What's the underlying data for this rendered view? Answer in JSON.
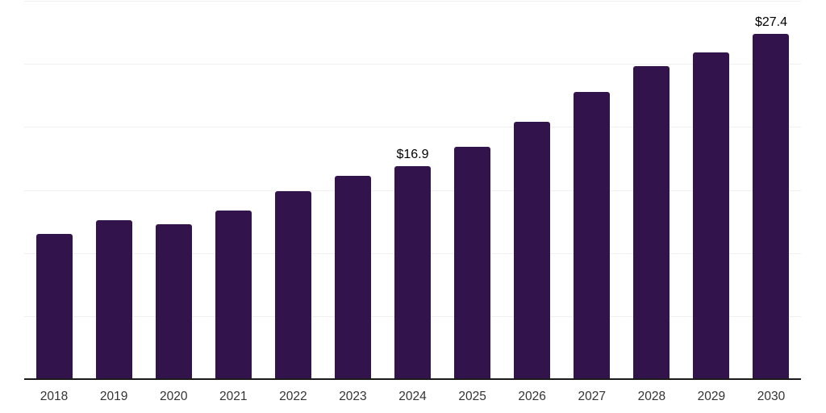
{
  "chart_data": {
    "type": "bar",
    "title": "",
    "xlabel": "",
    "ylabel": "",
    "categories": [
      "2018",
      "2019",
      "2020",
      "2021",
      "2022",
      "2023",
      "2024",
      "2025",
      "2026",
      "2027",
      "2028",
      "2029",
      "2030"
    ],
    "values": [
      11.5,
      12.6,
      12.3,
      13.4,
      14.9,
      16.1,
      16.9,
      18.4,
      20.4,
      22.8,
      24.8,
      25.9,
      27.4
    ],
    "annotations": [
      {
        "category": "2024",
        "label": "$16.9"
      },
      {
        "category": "2030",
        "label": "$27.4"
      }
    ],
    "ylim": [
      0,
      30
    ],
    "grid": "on",
    "grid_interval": 5,
    "y_axis_tick_labels_visible": false,
    "legend_position": "none"
  },
  "colors": {
    "bar": "#33134b",
    "grid_line": "#f0f0f0",
    "axis_line": "#1a1a1a",
    "tick_label": "#333333",
    "annotation_text": "#000000",
    "background": "#ffffff"
  }
}
